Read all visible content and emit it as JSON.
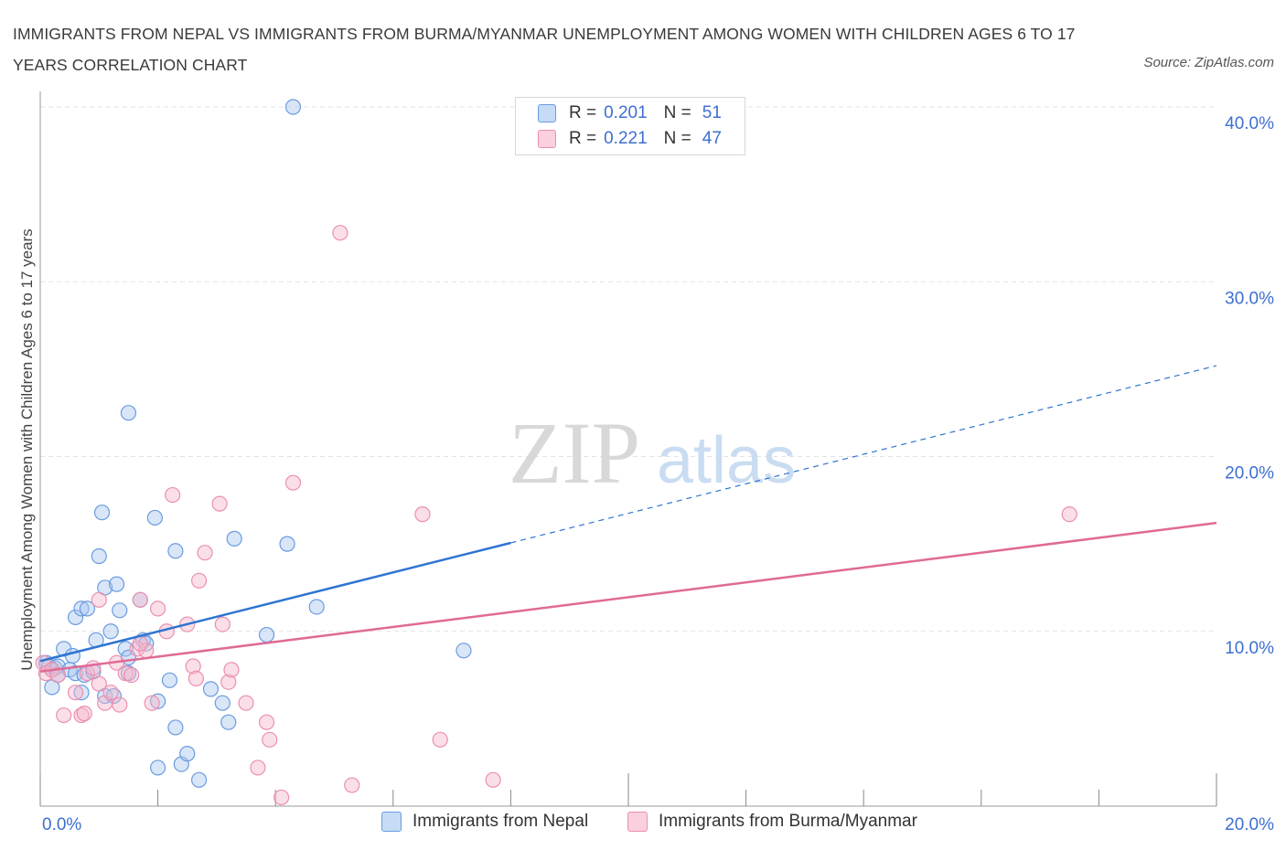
{
  "header": {
    "title": "IMMIGRANTS FROM NEPAL VS IMMIGRANTS FROM BURMA/MYANMAR UNEMPLOYMENT AMONG WOMEN WITH CHILDREN AGES 6 TO 17 YEARS CORRELATION CHART",
    "source": "Source: ZipAtlas.com"
  },
  "watermark": {
    "zip": "ZIP",
    "atlas": "atlas"
  },
  "legend_top": {
    "rows": [
      {
        "r_label": "R =",
        "r_value": "0.201",
        "n_label": "N =",
        "n_value": "51"
      },
      {
        "r_label": "R =",
        "r_value": "0.221",
        "n_label": "N =",
        "n_value": "47"
      }
    ]
  },
  "colors": {
    "nepal_fill": "#a9c8f0",
    "nepal_stroke": "#6b9be0",
    "nepal_line": "#2f74d0",
    "burma_fill": "#f6b8cc",
    "burma_stroke": "#eb8fb0",
    "burma_line": "#e06a95",
    "tick_label": "#3d6fd0",
    "grid": "#e3e3e3"
  },
  "chart_data": {
    "type": "scatter",
    "title": "IMMIGRANTS FROM NEPAL VS IMMIGRANTS FROM BURMA/MYANMAR UNEMPLOYMENT AMONG WOMEN WITH CHILDREN AGES 6 TO 17 YEARS CORRELATION CHART",
    "ylabel": "Unemployment Among Women with Children Ages 6 to 17 years",
    "xlabel": "",
    "xlim": [
      0,
      20
    ],
    "ylim": [
      0,
      40
    ],
    "x_tick_labels": [
      "0.0%",
      "20.0%"
    ],
    "y_ticks": [
      10,
      20,
      30,
      40
    ],
    "y_tick_labels": [
      "10.0%",
      "20.0%",
      "30.0%",
      "40.0%"
    ],
    "grid": true,
    "legend_position": "top-center",
    "series": [
      {
        "name": "Immigrants from Nepal",
        "R": 0.201,
        "N": 51,
        "trend": {
          "x0": 0,
          "y0": 8.3,
          "x1": 20,
          "y1": 25.2,
          "solid_until_x": 8.0
        },
        "points": [
          [
            0.1,
            8.2
          ],
          [
            0.15,
            8.0
          ],
          [
            0.2,
            7.8
          ],
          [
            0.25,
            7.9
          ],
          [
            0.3,
            8.0
          ],
          [
            0.2,
            6.8
          ],
          [
            0.3,
            7.5
          ],
          [
            0.4,
            9.0
          ],
          [
            0.5,
            7.8
          ],
          [
            0.55,
            8.6
          ],
          [
            0.6,
            7.6
          ],
          [
            0.6,
            10.8
          ],
          [
            0.7,
            6.5
          ],
          [
            0.75,
            7.5
          ],
          [
            0.7,
            11.3
          ],
          [
            0.8,
            11.3
          ],
          [
            0.9,
            7.7
          ],
          [
            0.95,
            9.5
          ],
          [
            1.0,
            14.3
          ],
          [
            1.05,
            16.8
          ],
          [
            1.1,
            12.5
          ],
          [
            1.1,
            6.3
          ],
          [
            1.2,
            10.0
          ],
          [
            1.25,
            6.3
          ],
          [
            1.3,
            12.7
          ],
          [
            1.35,
            11.2
          ],
          [
            1.45,
            9.0
          ],
          [
            1.5,
            7.6
          ],
          [
            1.5,
            8.5
          ],
          [
            1.5,
            22.5
          ],
          [
            1.7,
            11.8
          ],
          [
            1.75,
            9.5
          ],
          [
            1.8,
            9.3
          ],
          [
            1.95,
            16.5
          ],
          [
            2.0,
            6.0
          ],
          [
            2.2,
            7.2
          ],
          [
            2.3,
            4.5
          ],
          [
            2.3,
            14.6
          ],
          [
            2.4,
            2.4
          ],
          [
            2.5,
            3.0
          ],
          [
            2.7,
            1.5
          ],
          [
            2.9,
            6.7
          ],
          [
            3.1,
            5.9
          ],
          [
            3.2,
            4.8
          ],
          [
            3.3,
            15.3
          ],
          [
            3.85,
            9.8
          ],
          [
            4.2,
            15.0
          ],
          [
            4.3,
            40.0
          ],
          [
            4.7,
            11.4
          ],
          [
            7.2,
            8.9
          ],
          [
            2.0,
            2.2
          ]
        ]
      },
      {
        "name": "Immigrants from Burma/Myanmar",
        "R": 0.221,
        "N": 47,
        "trend": {
          "x0": 0,
          "y0": 7.7,
          "x1": 20,
          "y1": 16.2
        },
        "points": [
          [
            0.05,
            8.2
          ],
          [
            0.1,
            7.6
          ],
          [
            0.2,
            7.8
          ],
          [
            0.3,
            7.5
          ],
          [
            0.4,
            5.2
          ],
          [
            0.6,
            6.5
          ],
          [
            0.7,
            5.2
          ],
          [
            0.75,
            5.3
          ],
          [
            0.8,
            7.6
          ],
          [
            1.0,
            11.8
          ],
          [
            1.0,
            7.0
          ],
          [
            1.1,
            5.9
          ],
          [
            1.2,
            6.5
          ],
          [
            1.3,
            8.2
          ],
          [
            1.35,
            5.8
          ],
          [
            1.45,
            7.6
          ],
          [
            1.55,
            7.5
          ],
          [
            1.65,
            9.0
          ],
          [
            1.7,
            11.8
          ],
          [
            1.8,
            8.9
          ],
          [
            1.9,
            5.9
          ],
          [
            2.0,
            11.3
          ],
          [
            2.15,
            10.0
          ],
          [
            2.25,
            17.8
          ],
          [
            2.5,
            10.4
          ],
          [
            2.6,
            8.0
          ],
          [
            2.65,
            7.3
          ],
          [
            2.7,
            12.9
          ],
          [
            2.8,
            14.5
          ],
          [
            3.05,
            17.3
          ],
          [
            3.1,
            10.4
          ],
          [
            3.2,
            7.1
          ],
          [
            3.25,
            7.8
          ],
          [
            3.5,
            5.9
          ],
          [
            3.7,
            2.2
          ],
          [
            3.85,
            4.8
          ],
          [
            3.9,
            3.8
          ],
          [
            4.1,
            0.5
          ],
          [
            4.3,
            18.5
          ],
          [
            5.1,
            32.8
          ],
          [
            5.3,
            1.2
          ],
          [
            6.5,
            16.7
          ],
          [
            6.8,
            3.8
          ],
          [
            7.7,
            1.5
          ],
          [
            17.5,
            16.7
          ],
          [
            1.7,
            9.3
          ],
          [
            0.9,
            7.9
          ]
        ]
      }
    ]
  },
  "bottom_legend": [
    {
      "label": "Immigrants from Nepal"
    },
    {
      "label": "Immigrants from Burma/Myanmar"
    }
  ]
}
